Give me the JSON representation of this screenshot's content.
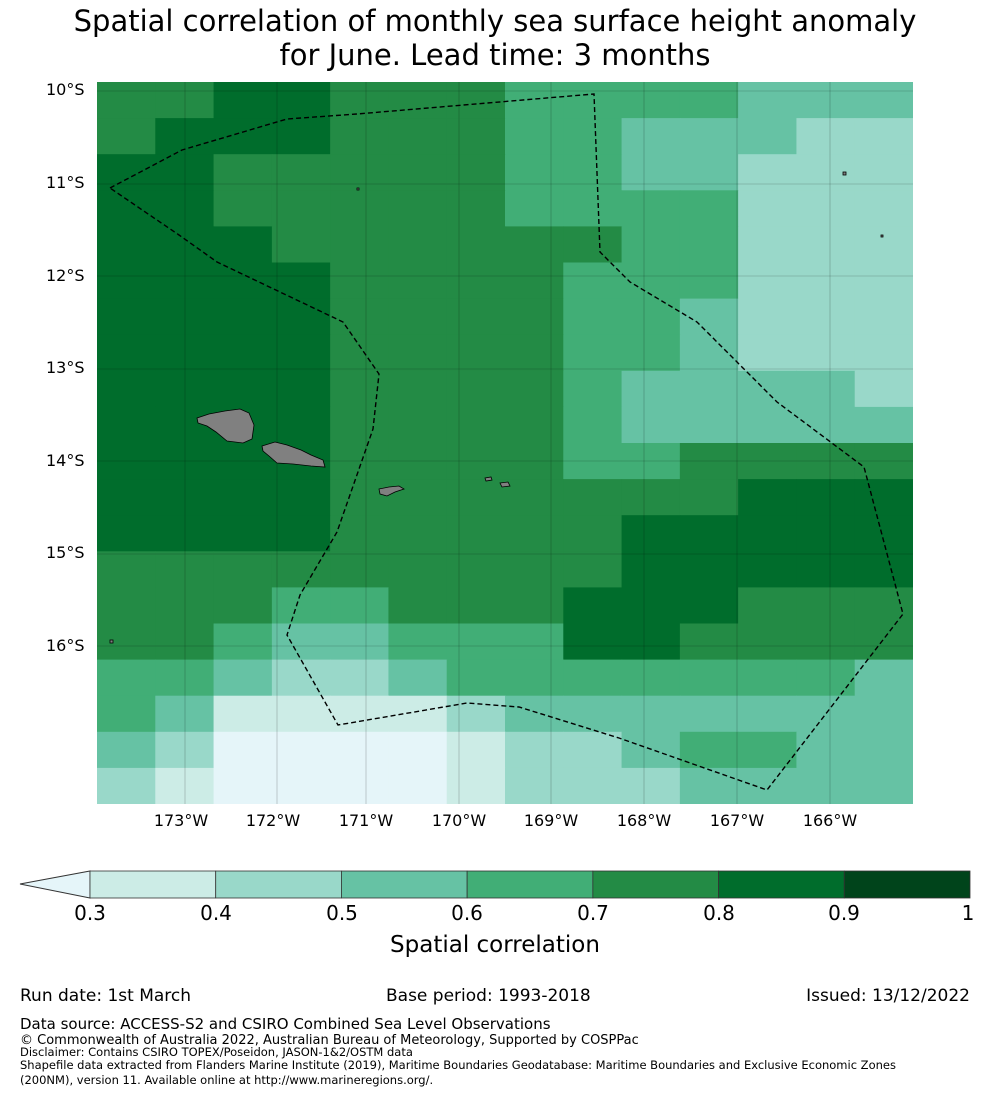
{
  "title_line1": "Spatial correlation of monthly sea surface height anomaly",
  "title_line2": "for June. Lead time: 3 months",
  "lat_labels": [
    "10°S",
    "11°S",
    "12°S",
    "13°S",
    "14°S",
    "15°S",
    "16°S"
  ],
  "lon_labels": [
    "173°W",
    "172°W",
    "171°W",
    "170°W",
    "169°W",
    "168°W",
    "167°W",
    "166°W"
  ],
  "colorbar": {
    "label": "Spatial correlation",
    "ticks": [
      "0.3",
      "0.4",
      "0.5",
      "0.6",
      "0.7",
      "0.8",
      "0.9",
      "1"
    ],
    "colors": [
      "#e5f5f9",
      "#ccece6",
      "#99d8c9",
      "#66c2a4",
      "#41ae76",
      "#238b45",
      "#006d2c",
      "#00441b"
    ]
  },
  "footer": {
    "run_date": "Run date: 1st March",
    "base_period": "Base period: 1993-2018",
    "issued": "Issued: 13/12/2022",
    "data_source": "Data source: ACCESS-S2 and CSIRO Combined Sea Level Observations",
    "copyright": "© Commonwealth of Australia 2022, Australian Bureau of Meteorology, Supported by COSPPac",
    "disclaimer": "Disclaimer: Contains CSIRO TOPEX/Poseidon, JASON-1&2/OSTM data",
    "shapefile_1": "Shapefile data extracted from Flanders Marine Institute (2019), Maritime Boundaries Geodatabase: Maritime Boundaries and Exclusive Economic Zones",
    "shapefile_2": "(200NM), version 11. Available online at http://www.marineregions.org/."
  },
  "map_grid": {
    "rows": [
      "55665554444333",
      "56665554433322",
      "66555554433222",
      "66555554444222",
      "66655555544222",
      "66665555444222",
      "66665555443222",
      "66665555443222",
      "66665555433332",
      "66665555433333",
      "66665555445555",
      "66665555555666",
      "66665555566666",
      "55555555566666",
      "55544555666555",
      "55433444665555",
      "44322344444443",
      "43111123333333",
      "32000012234433",
      "21000012223333"
    ]
  }
}
